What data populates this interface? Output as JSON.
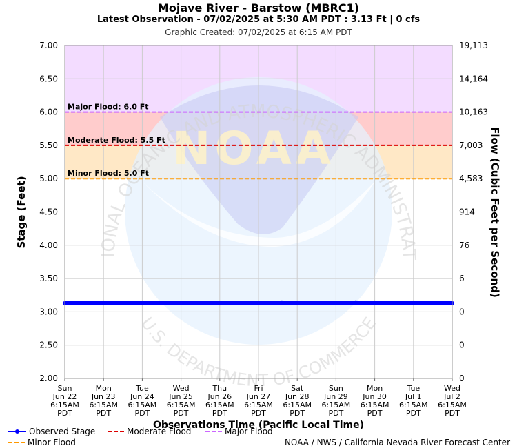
{
  "header": {
    "title": "Mojave River - Barstow (MBRC1)",
    "subtitle": "Latest Observation - 07/02/2025 at 5:30 AM PDT : 3.13 Ft | 0 cfs",
    "created": "Graphic Created: 07/02/2025 at 6:15 AM PDT"
  },
  "watermark": {
    "text_top": "NATIONAL OCEANIC AND ATMOSPHERIC ADMINISTRATION",
    "text_bottom": "U.S. DEPARTMENT OF COMMERCE",
    "logo": "NOAA"
  },
  "chart_data": {
    "type": "line",
    "xlabel": "Observations Time (Pacific Local Time)",
    "ylabel": "Stage (Feet)",
    "y2label": "Flow (Cubic Feet per Second)",
    "ylim": [
      2.0,
      7.0
    ],
    "yticks": [
      "7.00",
      "6.50",
      "6.00",
      "5.50",
      "5.00",
      "4.50",
      "4.00",
      "3.50",
      "3.00",
      "2.50",
      "2.00"
    ],
    "y2ticks": [
      "19,113",
      "14,164",
      "10,163",
      "7,003",
      "4,583",
      "914",
      "76",
      "6",
      "0",
      "0",
      "0"
    ],
    "xticks": [
      [
        "Sun",
        "Jun 22",
        "6:15AM",
        "PDT"
      ],
      [
        "Mon",
        "Jun 23",
        "6:15AM",
        "PDT"
      ],
      [
        "Tue",
        "Jun 24",
        "6:15AM",
        "PDT"
      ],
      [
        "Wed",
        "Jun 25",
        "6:15AM",
        "PDT"
      ],
      [
        "Thu",
        "Jun 26",
        "6:15AM",
        "PDT"
      ],
      [
        "Fri",
        "Jun 27",
        "6:15AM",
        "PDT"
      ],
      [
        "Sat",
        "Jun 28",
        "6:15AM",
        "PDT"
      ],
      [
        "Sun",
        "Jun 29",
        "6:15AM",
        "PDT"
      ],
      [
        "Mon",
        "Jun 30",
        "6:15AM",
        "PDT"
      ],
      [
        "Tue",
        "Jul 1",
        "6:15AM",
        "PDT"
      ],
      [
        "Wed",
        "Jul 2",
        "6:15AM",
        "PDT"
      ]
    ],
    "grid": true,
    "series": [
      {
        "name": "Observed Stage",
        "color": "#0000ff",
        "x": [
          0,
          1,
          2,
          3,
          4,
          5,
          5.55,
          5.6,
          6,
          7,
          7.45,
          7.5,
          8,
          9,
          10
        ],
        "values": [
          3.13,
          3.13,
          3.13,
          3.13,
          3.13,
          3.13,
          3.13,
          3.14,
          3.13,
          3.13,
          3.13,
          3.14,
          3.13,
          3.13,
          3.13
        ]
      }
    ],
    "thresholds": [
      {
        "name": "Major Flood",
        "label": "Major Flood: 6.0 Ft",
        "value": 6.0,
        "color": "#cc66ff",
        "fill": "#f3dcff",
        "top": 7.0
      },
      {
        "name": "Moderate Flood",
        "label": "Moderate Flood: 5.5 Ft",
        "value": 5.5,
        "color": "#dd0000",
        "fill": "#ffcccc",
        "top": 6.0
      },
      {
        "name": "Minor Flood",
        "label": "Minor Flood: 5.0 Ft",
        "value": 5.0,
        "color": "#ff9900",
        "fill": "#ffe8c6",
        "top": 5.5
      }
    ]
  },
  "legend": {
    "observed": "Observed Stage",
    "moderate": "Moderate Flood",
    "major": "Major Flood",
    "minor": "Minor Flood"
  },
  "credit": "NOAA / NWS / California Nevada River Forecast Center"
}
